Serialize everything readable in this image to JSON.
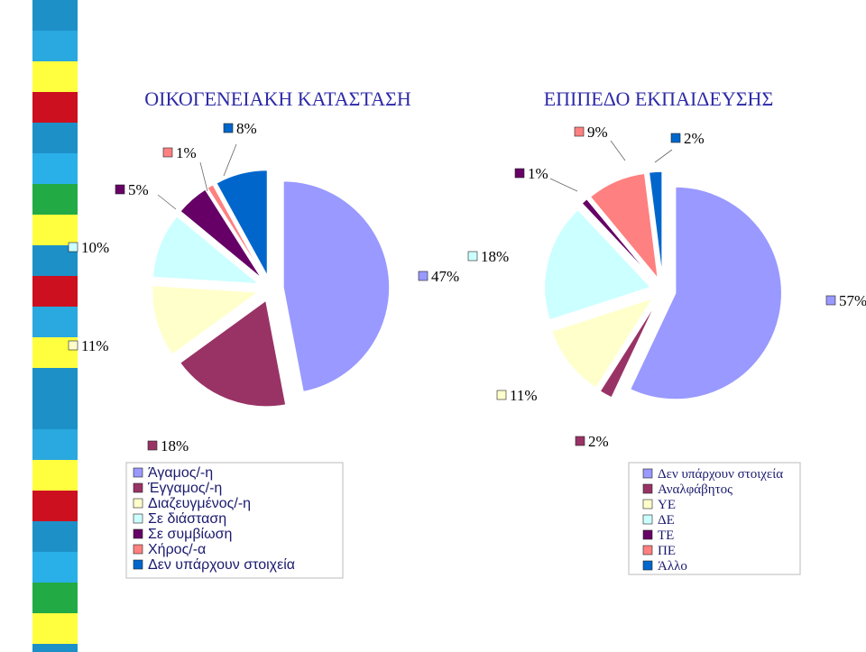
{
  "chart_data": [
    {
      "type": "pie",
      "title": "ΟΙΚΟΓΕΝΕΙΑΚΗ ΚΑΤΑΣΤΑΣΗ",
      "categories": [
        "Άγαμος/-η",
        "Έγγαμος/-η",
        "Διαζευγμένος/-η",
        "Σε διάσταση",
        "Σε συμβίωση",
        "Χήρος/-α",
        "Δεν υπάρχουν στοιχεία"
      ],
      "values": [
        47,
        18,
        11,
        10,
        5,
        1,
        8
      ],
      "labels": [
        "47%",
        "18%",
        "11%",
        "10%",
        "5%",
        "1%",
        "8%"
      ],
      "colors": [
        "#9999ff",
        "#993366",
        "#ffffcc",
        "#ccffff",
        "#660066",
        "#ff8080",
        "#0066cc"
      ],
      "legend": "bottom"
    },
    {
      "type": "pie",
      "title": "ΕΠΙΠΕΔΟ ΕΚΠΑΙΔΕΥΣΗΣ",
      "categories": [
        "Δεν υπάρχουν στοιχεία",
        "Αναλφάβητος",
        "ΥΕ",
        "ΔΕ",
        "ΤΕ",
        "ΠΕ",
        "Άλλο"
      ],
      "values": [
        57,
        2,
        11,
        18,
        1,
        9,
        2
      ],
      "labels": [
        "57%",
        "2%",
        "11%",
        "18%",
        "1%",
        "9%",
        "2%"
      ],
      "colors": [
        "#9999ff",
        "#993366",
        "#ffffcc",
        "#ccffff",
        "#660066",
        "#ff8080",
        "#0066cc"
      ],
      "legend": "bottom"
    }
  ],
  "stripe_colors": [
    "#1e90c8",
    "#2aa8e0",
    "#ffff40",
    "#cc1020",
    "#1e90c8",
    "#2ab0e8",
    "#22aa44",
    "#ffff40",
    "#1e90c8",
    "#cc1020",
    "#2aa8e0",
    "#ffff40",
    "#1e90c8"
  ]
}
